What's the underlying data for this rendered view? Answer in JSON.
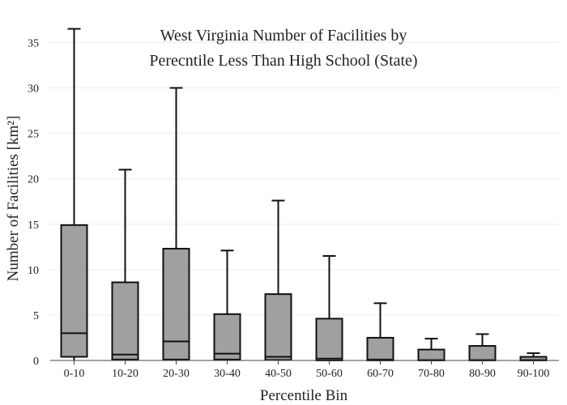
{
  "chart_data": {
    "type": "box",
    "title_lines": [
      "West Virginia Number of Facilities by",
      "Perecntile Less Than High School (State)"
    ],
    "xlabel": "Percentile Bin",
    "ylabel": "Number of Facilities  [km²]",
    "ylim": [
      0,
      37
    ],
    "yticks": [
      0,
      5,
      10,
      15,
      20,
      25,
      30,
      35
    ],
    "grid": true,
    "box_color": "#a0a0a0",
    "categories": [
      "0-10",
      "10-20",
      "20-30",
      "30-40",
      "40-50",
      "50-60",
      "60-70",
      "70-80",
      "80-90",
      "90-100"
    ],
    "boxes": [
      {
        "category": "0-10",
        "min": 0,
        "q1": 0.4,
        "median": 3.0,
        "q3": 14.9,
        "max": 36.5
      },
      {
        "category": "10-20",
        "min": 0,
        "q1": 0.1,
        "median": 0.65,
        "q3": 8.6,
        "max": 21.0
      },
      {
        "category": "20-30",
        "min": 0,
        "q1": 0.1,
        "median": 2.1,
        "q3": 12.3,
        "max": 30.0
      },
      {
        "category": "30-40",
        "min": 0,
        "q1": 0.1,
        "median": 0.75,
        "q3": 5.1,
        "max": 12.1
      },
      {
        "category": "40-50",
        "min": 0,
        "q1": 0.05,
        "median": 0.4,
        "q3": 7.3,
        "max": 17.6
      },
      {
        "category": "50-60",
        "min": 0,
        "q1": 0.0,
        "median": 0.2,
        "q3": 4.6,
        "max": 11.5
      },
      {
        "category": "60-70",
        "min": 0,
        "q1": 0.0,
        "median": 0.1,
        "q3": 2.5,
        "max": 6.3
      },
      {
        "category": "70-80",
        "min": 0,
        "q1": 0.0,
        "median": 0.05,
        "q3": 1.2,
        "max": 2.4
      },
      {
        "category": "80-90",
        "min": 0,
        "q1": 0.0,
        "median": 0.05,
        "q3": 1.6,
        "max": 2.9
      },
      {
        "category": "90-100",
        "min": 0,
        "q1": 0.0,
        "median": 0.05,
        "q3": 0.4,
        "max": 0.8
      }
    ]
  }
}
